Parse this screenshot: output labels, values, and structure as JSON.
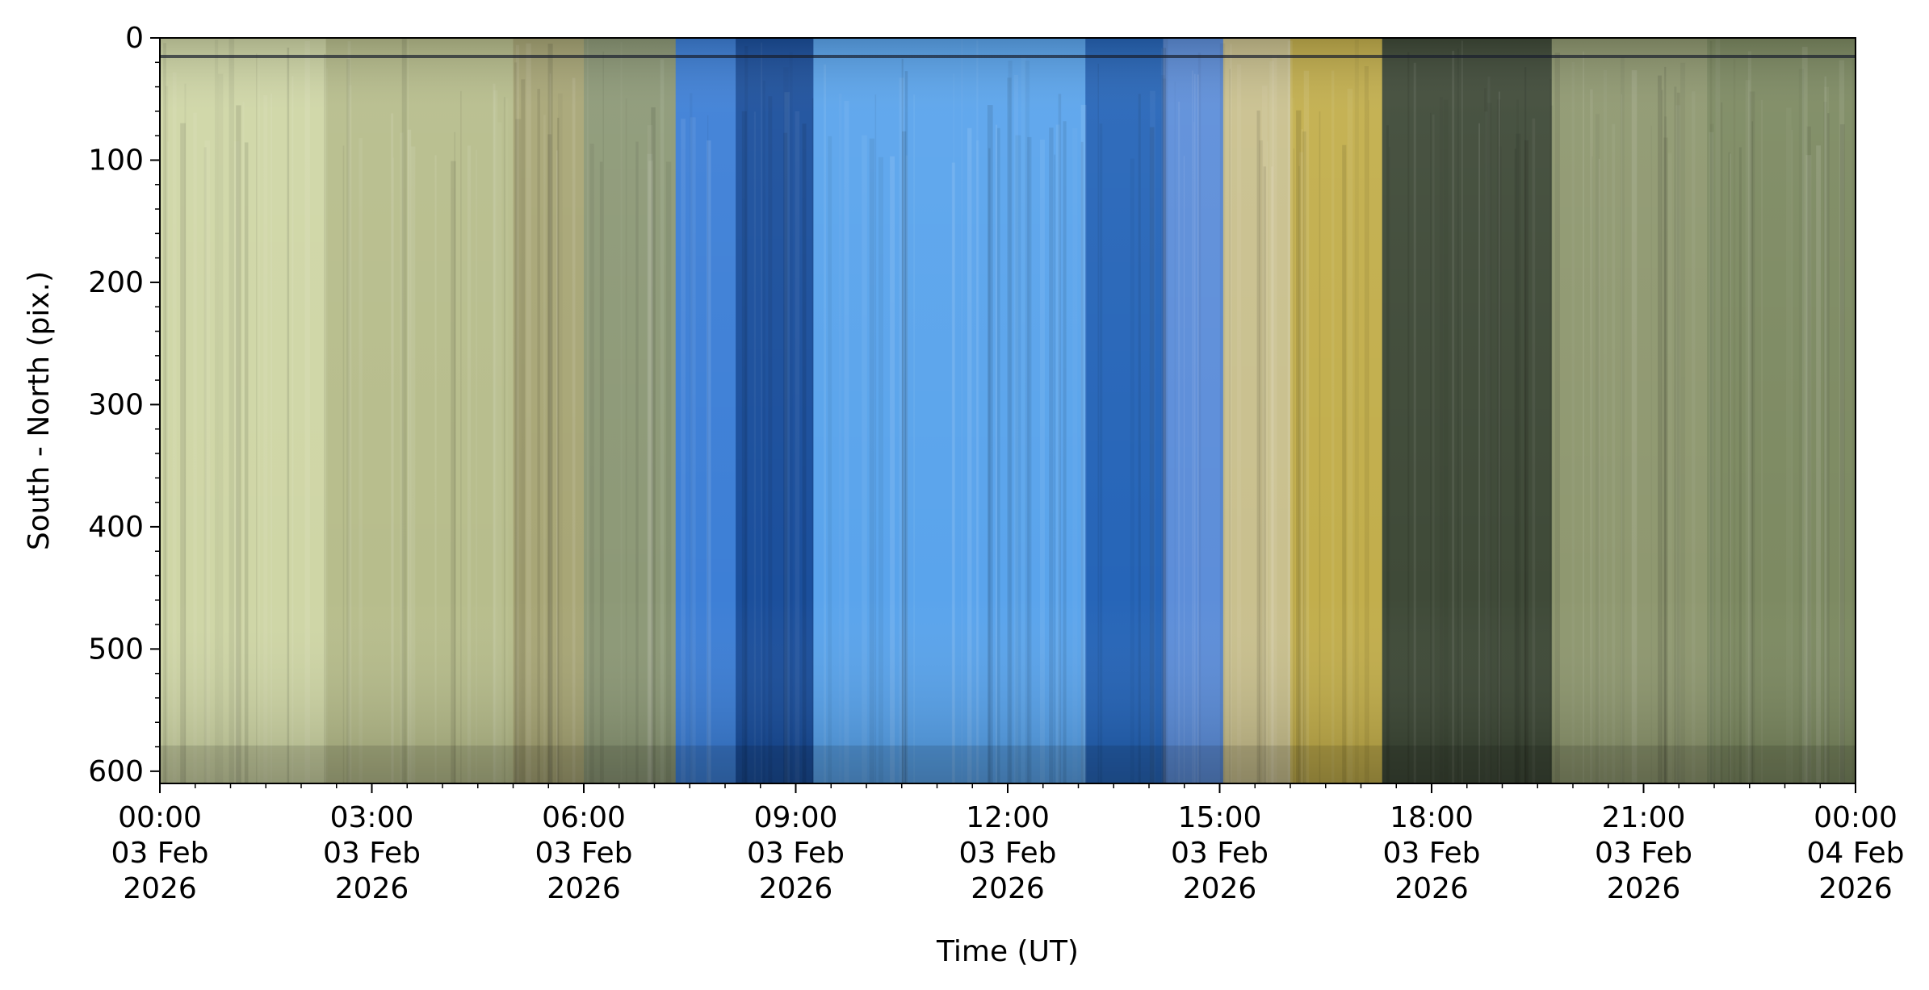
{
  "chart_data": {
    "type": "heatmap",
    "title": "",
    "xlabel": "Time (UT)",
    "ylabel": "South - North (pix.)",
    "xlim_hours": [
      0,
      24
    ],
    "ylim": [
      610,
      0
    ],
    "y_inverted": true,
    "grid": false,
    "legend": "none",
    "x_ticks": [
      {
        "hour": 0,
        "line1": "00:00",
        "line2": "03 Feb",
        "line3": "2026"
      },
      {
        "hour": 3,
        "line1": "03:00",
        "line2": "03 Feb",
        "line3": "2026"
      },
      {
        "hour": 6,
        "line1": "06:00",
        "line2": "03 Feb",
        "line3": "2026"
      },
      {
        "hour": 9,
        "line1": "09:00",
        "line2": "03 Feb",
        "line3": "2026"
      },
      {
        "hour": 12,
        "line1": "12:00",
        "line2": "03 Feb",
        "line3": "2026"
      },
      {
        "hour": 15,
        "line1": "15:00",
        "line2": "03 Feb",
        "line3": "2026"
      },
      {
        "hour": 18,
        "line1": "18:00",
        "line2": "03 Feb",
        "line3": "2026"
      },
      {
        "hour": 21,
        "line1": "21:00",
        "line2": "03 Feb",
        "line3": "2026"
      },
      {
        "hour": 24,
        "line1": "00:00",
        "line2": "04 Feb",
        "line3": "2026"
      }
    ],
    "y_ticks": [
      0,
      100,
      200,
      300,
      400,
      500,
      600
    ],
    "color_bands": [
      {
        "start_hour": 0.0,
        "end_hour": 2.35,
        "color": "#cfd6a6",
        "name": "night-sky-pale-band"
      },
      {
        "start_hour": 2.35,
        "end_hour": 5.0,
        "color": "#b7bd8c",
        "name": "night-sky-streaked-band"
      },
      {
        "start_hour": 5.0,
        "end_hour": 6.0,
        "color": "#a8a676",
        "name": "night-sky-yellowed-band"
      },
      {
        "start_hour": 6.0,
        "end_hour": 7.3,
        "color": "#8d9977",
        "name": "pre-dawn-band"
      },
      {
        "start_hour": 7.3,
        "end_hour": 8.15,
        "color": "#3d7fd6",
        "name": "twilight-blue-band"
      },
      {
        "start_hour": 8.15,
        "end_hour": 9.25,
        "color": "#1b4f9c",
        "name": "morning-dark-blue-band"
      },
      {
        "start_hour": 9.25,
        "end_hour": 13.1,
        "color": "#5aa4ec",
        "name": "daylight-blue-band"
      },
      {
        "start_hour": 13.1,
        "end_hour": 14.2,
        "color": "#2665b8",
        "name": "afternoon-blue-band"
      },
      {
        "start_hour": 14.2,
        "end_hour": 15.05,
        "color": "#5d8ed9",
        "name": "dusk-blue-band"
      },
      {
        "start_hour": 15.05,
        "end_hour": 16.0,
        "color": "#c9c08e",
        "name": "dusk-yellow-band"
      },
      {
        "start_hour": 16.0,
        "end_hour": 17.3,
        "color": "#c2ae4c",
        "name": "evening-yellow-band"
      },
      {
        "start_hour": 17.3,
        "end_hour": 19.7,
        "color": "#3f4a38",
        "name": "night-dark-band"
      },
      {
        "start_hour": 19.7,
        "end_hour": 21.9,
        "color": "#8f9870",
        "name": "night-mixed-band"
      },
      {
        "start_hour": 21.9,
        "end_hour": 24.0,
        "color": "#7d8a62",
        "name": "late-night-band"
      }
    ]
  }
}
